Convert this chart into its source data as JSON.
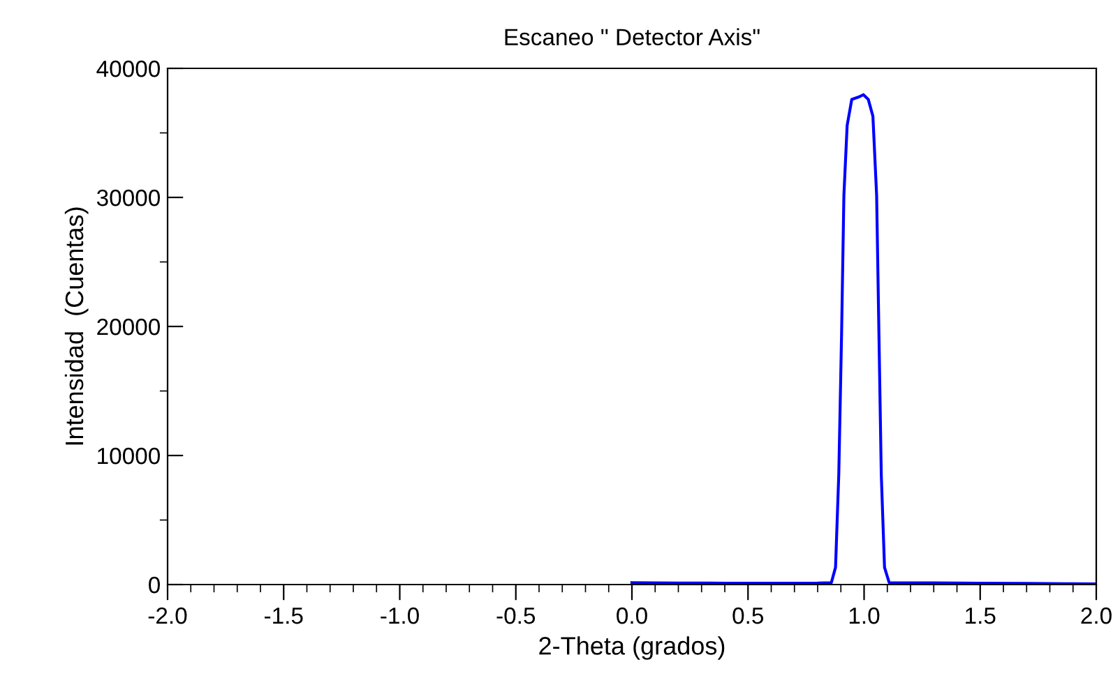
{
  "chart_data": {
    "type": "line",
    "title": "Escaneo \" Detector Axis\"",
    "xlabel": "2-Theta (grados)",
    "ylabel": "Intensidad  (Cuentas)",
    "series": [
      {
        "color": "#0000ff",
        "x": [
          0.0,
          0.2,
          0.4,
          0.6,
          0.8,
          0.859,
          0.877,
          0.891,
          0.903,
          0.913,
          0.927,
          0.947,
          0.977,
          0.997,
          1.018,
          1.038,
          1.054,
          1.064,
          1.074,
          1.088,
          1.108,
          1.3,
          1.5,
          1.7,
          1.9,
          2.0
        ],
        "values": [
          150,
          120,
          110,
          110,
          120,
          150,
          1330,
          8540,
          19350,
          30160,
          35570,
          37600,
          37780,
          37960,
          37600,
          36290,
          30160,
          19350,
          8540,
          1330,
          150,
          130,
          100,
          90,
          60,
          50
        ]
      }
    ],
    "xlim": [
      -2.0,
      2.0
    ],
    "xticks": [
      {
        "value": -2.0,
        "label": "-2.0"
      },
      {
        "value": -1.5,
        "label": "-1.5"
      },
      {
        "value": -1.0,
        "label": "-1.0"
      },
      {
        "value": -0.5,
        "label": "-0.5"
      },
      {
        "value": 0.0,
        "label": "0.0"
      },
      {
        "value": 0.5,
        "label": "0.5"
      },
      {
        "value": 1.0,
        "label": "1.0"
      },
      {
        "value": 1.5,
        "label": "1.5"
      },
      {
        "value": 2.0,
        "label": "2.0"
      }
    ],
    "ylim": [
      0,
      40000
    ],
    "yticks": [
      0,
      10000,
      20000,
      30000,
      40000
    ],
    "grid": false,
    "legend": false,
    "marker": "none",
    "line_style": "solid"
  }
}
